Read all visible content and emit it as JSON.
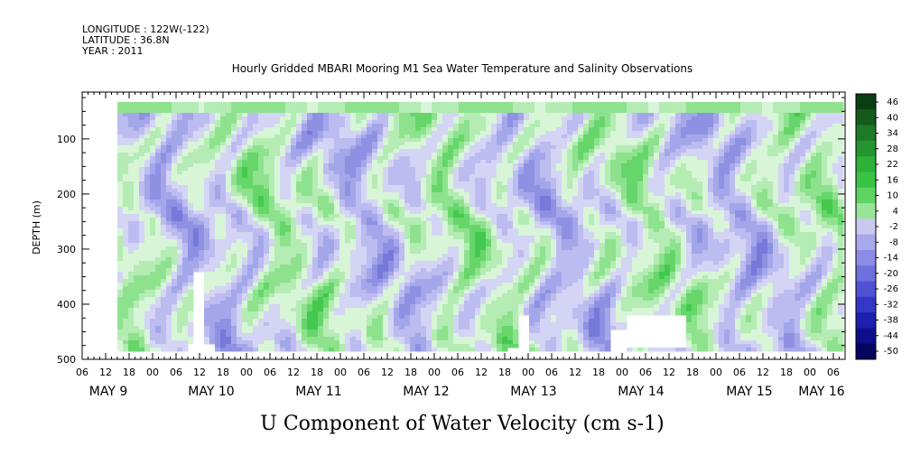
{
  "meta": {
    "longitude": "LONGITUDE : 122W(-122)",
    "latitude": "LATITUDE : 36.8N",
    "year": "YEAR : 2011"
  },
  "chart_data": {
    "type": "heatmap",
    "title": "Hourly Gridded MBARI Mooring M1 Sea Water Temperature and Salinity Observations",
    "xlabel": "U Component of Water Velocity (cm s-1)",
    "ylabel": "DEPTH (m)",
    "ylim": [
      500,
      15
    ],
    "yticks": [
      100,
      200,
      300,
      400,
      500
    ],
    "hour_ticks": [
      "06",
      "12",
      "18",
      "00",
      "06",
      "12",
      "18",
      "00",
      "06",
      "12",
      "18",
      "00",
      "06",
      "12",
      "18",
      "00",
      "06",
      "12",
      "18",
      "00",
      "06",
      "12",
      "18",
      "00",
      "06",
      "12",
      "18",
      "00",
      "06",
      "12",
      "18",
      "00",
      "06"
    ],
    "day_labels": [
      "MAY  9",
      "MAY 10",
      "MAY 11",
      "MAY 12",
      "MAY 13",
      "MAY 14",
      "MAY 15",
      "MAY 16"
    ],
    "colorbar": {
      "labels": [
        "46",
        "40",
        "34",
        "28",
        "22",
        "16",
        "10",
        "4",
        "-2",
        "-8",
        "-14",
        "-20",
        "-26",
        "-32",
        "-38",
        "-44",
        "-50"
      ],
      "colors_top_to_bottom": [
        "#0b3d12",
        "#145c1c",
        "#1d7a26",
        "#25962f",
        "#2db138",
        "#39c444",
        "#5fd363",
        "#9ae49a",
        "#c8c8f0",
        "#a8a8ec",
        "#8c8ce6",
        "#6e70de",
        "#5052d4",
        "#3436c6",
        "#1d1fae",
        "#0d0f8a",
        "#04055e"
      ]
    },
    "data_note_regions": "Field sampled visually: mixed green (positive) and lavender/blue (negative) patches across depth and time."
  }
}
